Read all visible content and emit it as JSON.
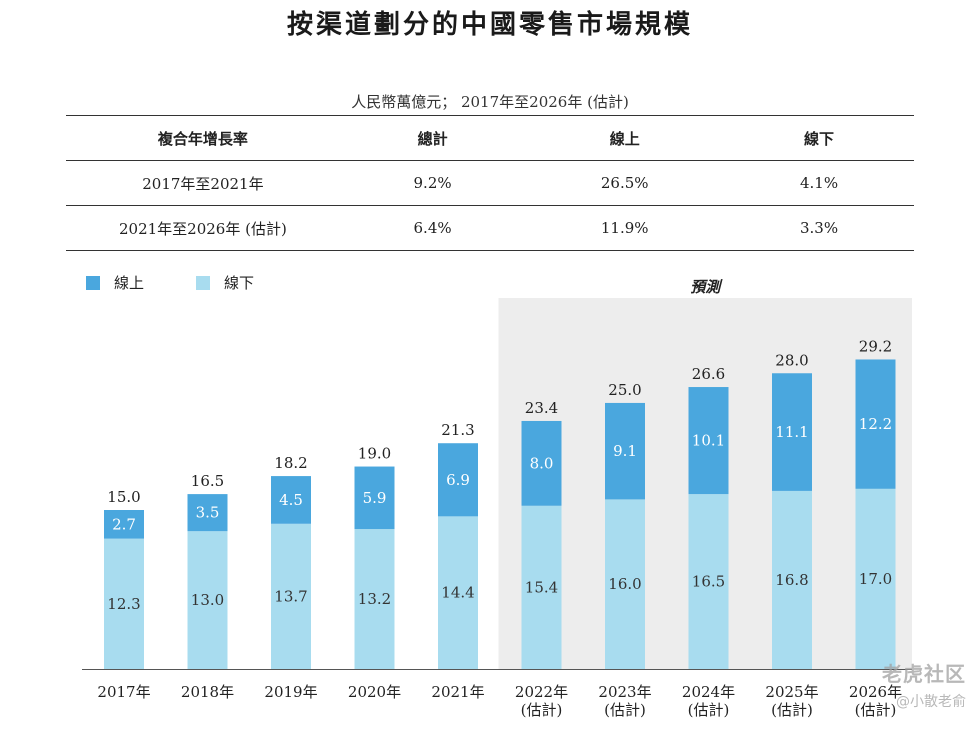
{
  "title": "按渠道劃分的中國零售市場規模",
  "unit_note": "人民幣萬億元； 2017年至2026年 (估計)",
  "cagr_table": {
    "headers": [
      "複合年增長率",
      "總計",
      "線上",
      "線下"
    ],
    "rows": [
      [
        "2017年至2021年",
        "9.2%",
        "26.5%",
        "4.1%"
      ],
      [
        "2021年至2026年 (估計)",
        "6.4%",
        "11.9%",
        "3.3%"
      ]
    ]
  },
  "forecast_label": "預測",
  "watermark": {
    "brand": "老虎社区",
    "user": "@小散老俞"
  },
  "chart_data": {
    "type": "bar",
    "stacked": true,
    "categories": [
      "2017年",
      "2018年",
      "2019年",
      "2020年",
      "2021年",
      "2022年\n(估計)",
      "2023年\n(估計)",
      "2024年\n(估計)",
      "2025年\n(估計)",
      "2026年\n(估計)"
    ],
    "series": [
      {
        "name": "線下",
        "values": [
          12.3,
          13.0,
          13.7,
          13.2,
          14.4,
          15.4,
          16.0,
          16.5,
          16.8,
          17.0
        ],
        "color": "#a8dcef"
      },
      {
        "name": "線上",
        "values": [
          2.7,
          3.5,
          4.5,
          5.9,
          6.9,
          8.0,
          9.1,
          10.1,
          11.1,
          12.2
        ],
        "color": "#4aa7de"
      }
    ],
    "totals": [
      15.0,
      16.5,
      18.2,
      19.0,
      21.3,
      23.4,
      25.0,
      26.6,
      28.0,
      29.2
    ],
    "forecast_start_index": 5,
    "legend_order": [
      "線上",
      "線下"
    ],
    "legend_position": "top-left",
    "ylim": [
      0,
      30
    ],
    "forecast_bg": "#ededed"
  }
}
